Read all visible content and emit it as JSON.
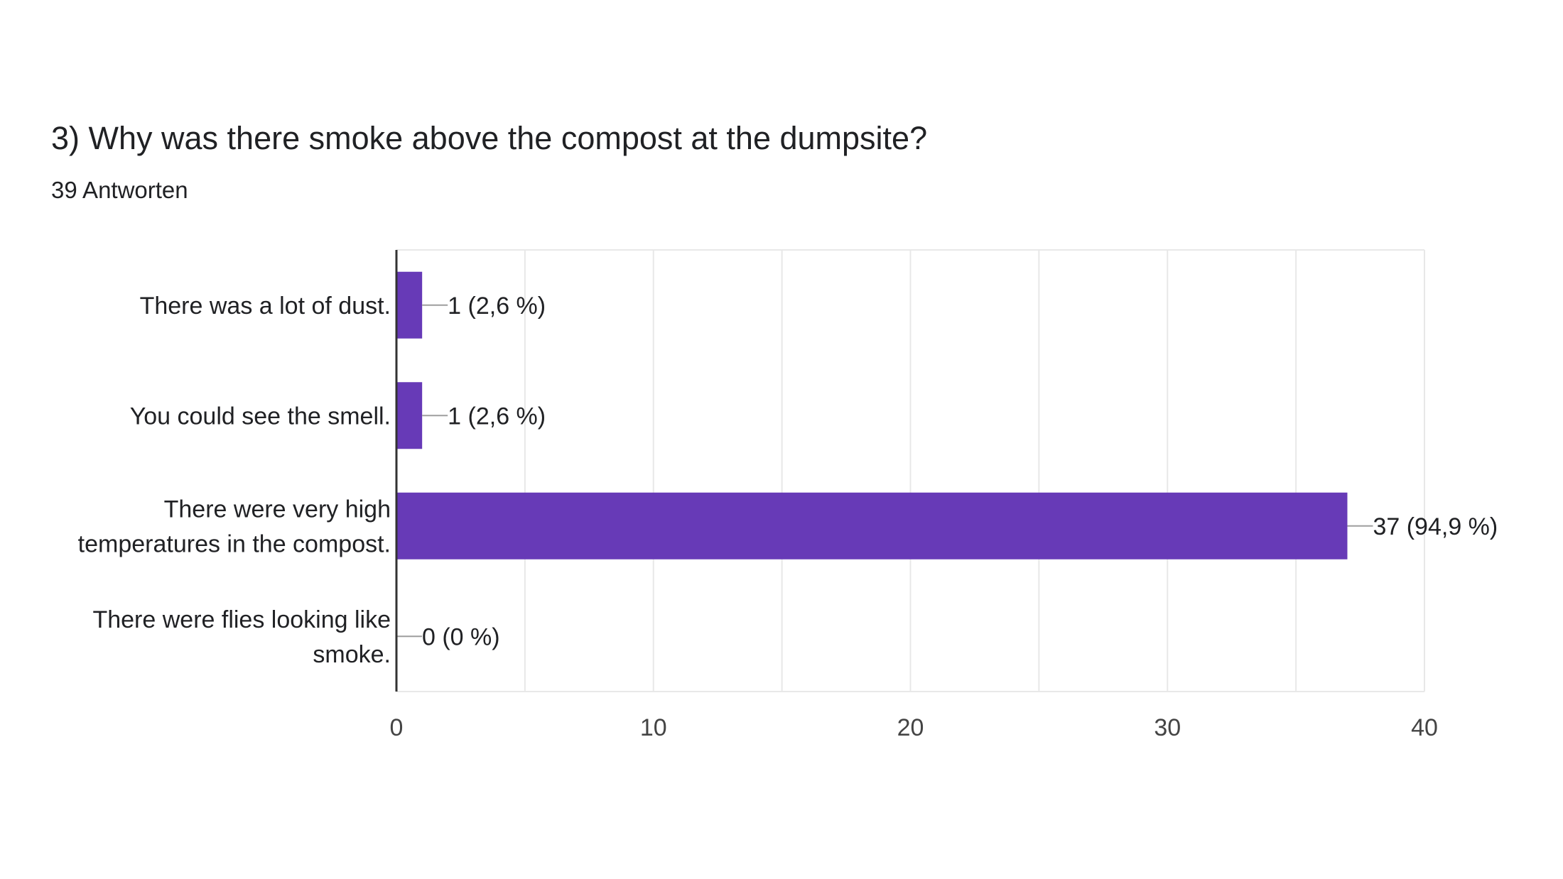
{
  "header": {
    "title": "3) Why was there smoke above the compost at the dumpsite?",
    "subtitle": "39 Antworten"
  },
  "chart_data": {
    "type": "bar",
    "orientation": "horizontal",
    "title": "3) Why was there smoke above the compost at the dumpsite?",
    "subtitle": "39 Antworten",
    "categories": [
      [
        "There was a lot of dust."
      ],
      [
        "You could see the smell."
      ],
      [
        "There were very high",
        "temperatures in the compost."
      ],
      [
        "There were flies looking like",
        "smoke."
      ]
    ],
    "values": [
      1,
      1,
      37,
      0
    ],
    "value_labels": [
      "1 (2,6 %)",
      "1 (2,6 %)",
      "37 (94,9 %)",
      "0 (0 %)"
    ],
    "xlim": [
      0,
      40
    ],
    "xticks": [
      0,
      10,
      20,
      30,
      40
    ],
    "grid": true,
    "bar_color": "#673ab7",
    "grid_color": "#e8e8e8",
    "axis_color": "#333333"
  }
}
